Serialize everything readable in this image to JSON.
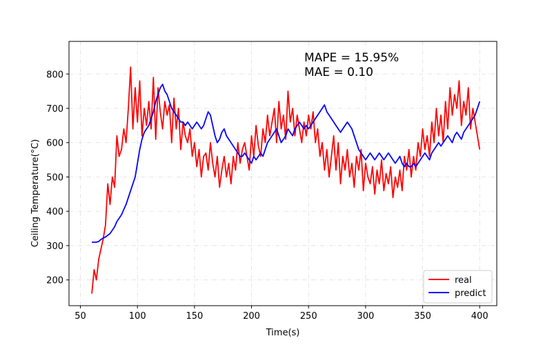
{
  "chart_data": {
    "type": "line",
    "title": "",
    "xlabel": "Time(s)",
    "ylabel": "Ceiling Temperature(°C)",
    "xlim": [
      40,
      415
    ],
    "ylim": [
      125,
      895
    ],
    "xticks": [
      50,
      100,
      150,
      200,
      250,
      300,
      350,
      400
    ],
    "yticks": [
      200,
      300,
      400,
      500,
      600,
      700,
      800
    ],
    "grid": true,
    "legend_position": "lower-right",
    "annotations": [
      "MAPE = 15.95%",
      "MAE = 0.10"
    ],
    "series": [
      {
        "name": "real",
        "color": "#ff0000",
        "x": [
          60,
          62,
          64,
          66,
          68,
          70,
          72,
          74,
          76,
          78,
          80,
          82,
          84,
          86,
          88,
          90,
          92,
          94,
          96,
          98,
          100,
          102,
          104,
          106,
          108,
          110,
          112,
          114,
          116,
          118,
          120,
          122,
          124,
          126,
          128,
          130,
          132,
          134,
          136,
          138,
          140,
          142,
          144,
          146,
          148,
          150,
          152,
          154,
          156,
          158,
          160,
          162,
          164,
          166,
          168,
          170,
          172,
          174,
          176,
          178,
          180,
          182,
          184,
          186,
          188,
          190,
          192,
          194,
          196,
          198,
          200,
          202,
          204,
          206,
          208,
          210,
          212,
          214,
          216,
          218,
          220,
          222,
          224,
          226,
          228,
          230,
          232,
          234,
          236,
          238,
          240,
          242,
          244,
          246,
          248,
          250,
          252,
          254,
          256,
          258,
          260,
          262,
          264,
          266,
          268,
          270,
          272,
          274,
          276,
          278,
          280,
          282,
          284,
          286,
          288,
          290,
          292,
          294,
          296,
          298,
          300,
          302,
          304,
          306,
          308,
          310,
          312,
          314,
          316,
          318,
          320,
          322,
          324,
          326,
          328,
          330,
          332,
          334,
          336,
          338,
          340,
          342,
          344,
          346,
          348,
          350,
          352,
          354,
          356,
          358,
          360,
          362,
          364,
          366,
          368,
          370,
          372,
          374,
          376,
          378,
          380,
          382,
          384,
          386,
          388,
          390,
          392,
          394,
          396,
          398,
          400
        ],
        "y": [
          160,
          230,
          200,
          260,
          290,
          320,
          360,
          480,
          420,
          500,
          470,
          620,
          560,
          580,
          640,
          600,
          700,
          820,
          640,
          760,
          660,
          780,
          620,
          700,
          650,
          720,
          640,
          790,
          610,
          760,
          690,
          640,
          720,
          680,
          710,
          600,
          730,
          640,
          700,
          580,
          660,
          620,
          600,
          640,
          560,
          600,
          530,
          580,
          500,
          560,
          570,
          520,
          600,
          540,
          500,
          560,
          470,
          520,
          560,
          500,
          540,
          480,
          560,
          520,
          600,
          540,
          580,
          600,
          560,
          520,
          620,
          560,
          650,
          590,
          560,
          640,
          600,
          680,
          620,
          660,
          700,
          600,
          720,
          640,
          680,
          610,
          750,
          660,
          700,
          620,
          680,
          640,
          600,
          660,
          620,
          680,
          640,
          690,
          600,
          640,
          560,
          600,
          520,
          580,
          500,
          560,
          620,
          520,
          600,
          480,
          560,
          520,
          580,
          500,
          540,
          470,
          560,
          520,
          580,
          460,
          540,
          500,
          480,
          530,
          450,
          520,
          480,
          550,
          460,
          510,
          480,
          530,
          440,
          500,
          470,
          520,
          460,
          560,
          520,
          580,
          500,
          560,
          520,
          600,
          560,
          640,
          580,
          620,
          560,
          660,
          600,
          700,
          620,
          680,
          600,
          720,
          640,
          760,
          680,
          740,
          700,
          780,
          650,
          720,
          680,
          760,
          640,
          700,
          660,
          620,
          580
        ]
      },
      {
        "name": "predict",
        "color": "#0000ff",
        "x": [
          60,
          62,
          64,
          66,
          68,
          70,
          72,
          74,
          76,
          78,
          80,
          82,
          84,
          86,
          88,
          90,
          92,
          94,
          96,
          98,
          100,
          102,
          104,
          106,
          108,
          110,
          112,
          114,
          116,
          118,
          120,
          122,
          124,
          126,
          128,
          130,
          132,
          134,
          136,
          138,
          140,
          142,
          144,
          146,
          148,
          150,
          152,
          154,
          156,
          158,
          160,
          162,
          164,
          166,
          168,
          170,
          172,
          174,
          176,
          178,
          180,
          182,
          184,
          186,
          188,
          190,
          192,
          194,
          196,
          198,
          200,
          202,
          204,
          206,
          208,
          210,
          212,
          214,
          216,
          218,
          220,
          222,
          224,
          226,
          228,
          230,
          232,
          234,
          236,
          238,
          240,
          242,
          244,
          246,
          248,
          250,
          252,
          254,
          256,
          258,
          260,
          262,
          264,
          266,
          268,
          270,
          272,
          274,
          276,
          278,
          280,
          282,
          284,
          286,
          288,
          290,
          292,
          294,
          296,
          298,
          300,
          302,
          304,
          306,
          308,
          310,
          312,
          314,
          316,
          318,
          320,
          322,
          324,
          326,
          328,
          330,
          332,
          334,
          336,
          338,
          340,
          342,
          344,
          346,
          348,
          350,
          352,
          354,
          356,
          358,
          360,
          362,
          364,
          366,
          368,
          370,
          372,
          374,
          376,
          378,
          380,
          382,
          384,
          386,
          388,
          390,
          392,
          394,
          396,
          398,
          400
        ],
        "y": [
          310,
          310,
          310,
          312,
          318,
          322,
          325,
          330,
          335,
          345,
          355,
          370,
          380,
          390,
          405,
          420,
          440,
          460,
          480,
          500,
          540,
          580,
          610,
          630,
          640,
          650,
          670,
          690,
          720,
          740,
          760,
          770,
          750,
          740,
          720,
          700,
          690,
          680,
          670,
          660,
          660,
          650,
          660,
          650,
          640,
          650,
          660,
          650,
          640,
          650,
          670,
          690,
          680,
          650,
          620,
          600,
          610,
          630,
          640,
          620,
          610,
          600,
          590,
          580,
          570,
          560,
          560,
          570,
          560,
          550,
          540,
          560,
          550,
          560,
          570,
          560,
          580,
          600,
          610,
          620,
          630,
          640,
          620,
          600,
          610,
          620,
          640,
          630,
          620,
          640,
          650,
          660,
          650,
          640,
          650,
          640,
          650,
          660,
          670,
          680,
          690,
          700,
          710,
          690,
          680,
          670,
          660,
          650,
          640,
          630,
          640,
          650,
          660,
          650,
          640,
          620,
          600,
          580,
          570,
          560,
          550,
          560,
          570,
          560,
          550,
          560,
          570,
          560,
          550,
          560,
          570,
          560,
          550,
          540,
          550,
          560,
          540,
          530,
          540,
          530,
          530,
          540,
          530,
          540,
          550,
          560,
          570,
          560,
          550,
          570,
          580,
          590,
          600,
          590,
          600,
          610,
          620,
          610,
          600,
          620,
          630,
          620,
          610,
          630,
          640,
          650,
          660,
          670,
          680,
          700,
          720
        ]
      }
    ]
  }
}
